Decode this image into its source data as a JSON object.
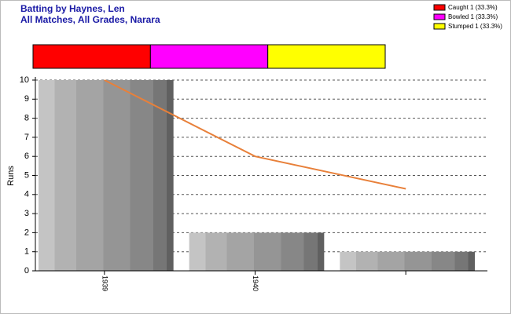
{
  "chart_data": [
    {
      "type": "bar",
      "title": "Batting by Haynes, Len",
      "subtitle": "All Matches, All Grades, Narara",
      "ylabel": "Runs",
      "categories": [
        "1939",
        "1940",
        null
      ],
      "values": [
        10,
        2,
        1
      ],
      "color": "#9a9a9a",
      "line": {
        "values": [
          10,
          6,
          4.3
        ],
        "color": "#e8803a"
      },
      "ylim": [
        0,
        10
      ],
      "yticks": [
        0,
        1,
        2,
        3,
        4,
        5,
        6,
        7,
        8,
        9,
        10
      ],
      "grid": true
    },
    {
      "type": "stacked-bar",
      "legend": "top-right",
      "series": [
        {
          "name": "Caught 1 (33.3%)",
          "color": "#ff0000",
          "values": [
            1
          ]
        },
        {
          "name": "Bowled 1 (33.3%)",
          "color": "#ff00ff",
          "values": [
            1
          ]
        },
        {
          "name": "Stumped 1 (33.3%)",
          "color": "#ffff00",
          "values": [
            1
          ]
        }
      ]
    }
  ]
}
